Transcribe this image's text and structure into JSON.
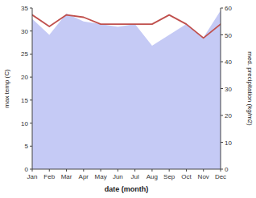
{
  "chart_data": {
    "type": "line",
    "xlabel": "date (month)",
    "ylabel": "max temp (C)",
    "y2label": "med. precipitation (kg/m2)",
    "categories": [
      "Jan",
      "Feb",
      "Mar",
      "Apr",
      "May",
      "Jun",
      "Jul",
      "Aug",
      "Sep",
      "Oct",
      "Nov",
      "Dec"
    ],
    "series": [
      {
        "type": "area",
        "axis": "y2",
        "color": "#c5caf5",
        "values": [
          56,
          50,
          58,
          55,
          54,
          53,
          54,
          46,
          50,
          54,
          49,
          59
        ]
      },
      {
        "type": "line",
        "color": "#c0504d",
        "values": [
          33.5,
          31.0,
          33.5,
          33.0,
          31.5,
          31.5,
          31.5,
          31.5,
          33.5,
          31.5,
          28.5,
          31.5
        ]
      }
    ],
    "ylim": [
      0,
      35
    ],
    "yticks": [
      0,
      5,
      10,
      15,
      20,
      25,
      30,
      35
    ],
    "y2lim": [
      0,
      60
    ],
    "y2ticks": [
      0,
      10,
      20,
      30,
      40,
      50,
      60
    ],
    "grid": false
  }
}
